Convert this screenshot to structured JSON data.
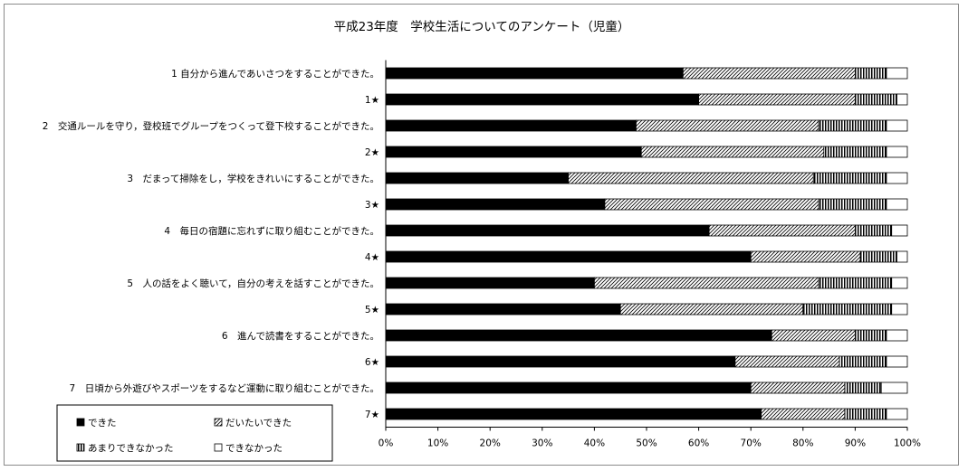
{
  "chart_data": {
    "type": "bar",
    "orientation": "horizontal",
    "stacked": "percent",
    "title": "平成23年度　学校生活についてのアンケート（児童）",
    "categories": [
      "1 自分から進んであいさつをすることができた。",
      "1★",
      "2　交通ルールを守り，登校班でグループをつくって登下校することができた。",
      "2★",
      "3　だまって掃除をし，学校をきれいにすることができた。",
      "3★",
      "4　毎日の宿題に忘れずに取り組むことができた。",
      "4★",
      "5　人の話をよく聴いて，自分の考えを話すことができた。",
      "5★",
      "6　進んで読書をすることができた。",
      "6★",
      "7　日頃から外遊びやスポーツをするなど運動に取り組むことができた。",
      "7★"
    ],
    "series": [
      {
        "name": "できた",
        "values": [
          57,
          60,
          48,
          49,
          35,
          42,
          62,
          70,
          40,
          45,
          74,
          67,
          70,
          72
        ]
      },
      {
        "name": "だいたいできた",
        "values": [
          33,
          30,
          35,
          35,
          47,
          41,
          28,
          21,
          43,
          35,
          16,
          20,
          18,
          16
        ]
      },
      {
        "name": "あまりできなかった",
        "values": [
          6,
          8,
          13,
          12,
          14,
          13,
          7,
          7,
          14,
          17,
          6,
          9,
          7,
          8
        ]
      },
      {
        "name": "できなかった",
        "values": [
          4,
          2,
          4,
          4,
          4,
          4,
          3,
          2,
          3,
          3,
          4,
          4,
          5,
          4
        ]
      }
    ],
    "xlim": [
      0,
      100
    ],
    "xticks": [
      "0%",
      "10%",
      "20%",
      "30%",
      "40%",
      "50%",
      "60%",
      "70%",
      "80%",
      "90%",
      "100%"
    ],
    "grid": false,
    "legend_position": "bottom-left"
  }
}
